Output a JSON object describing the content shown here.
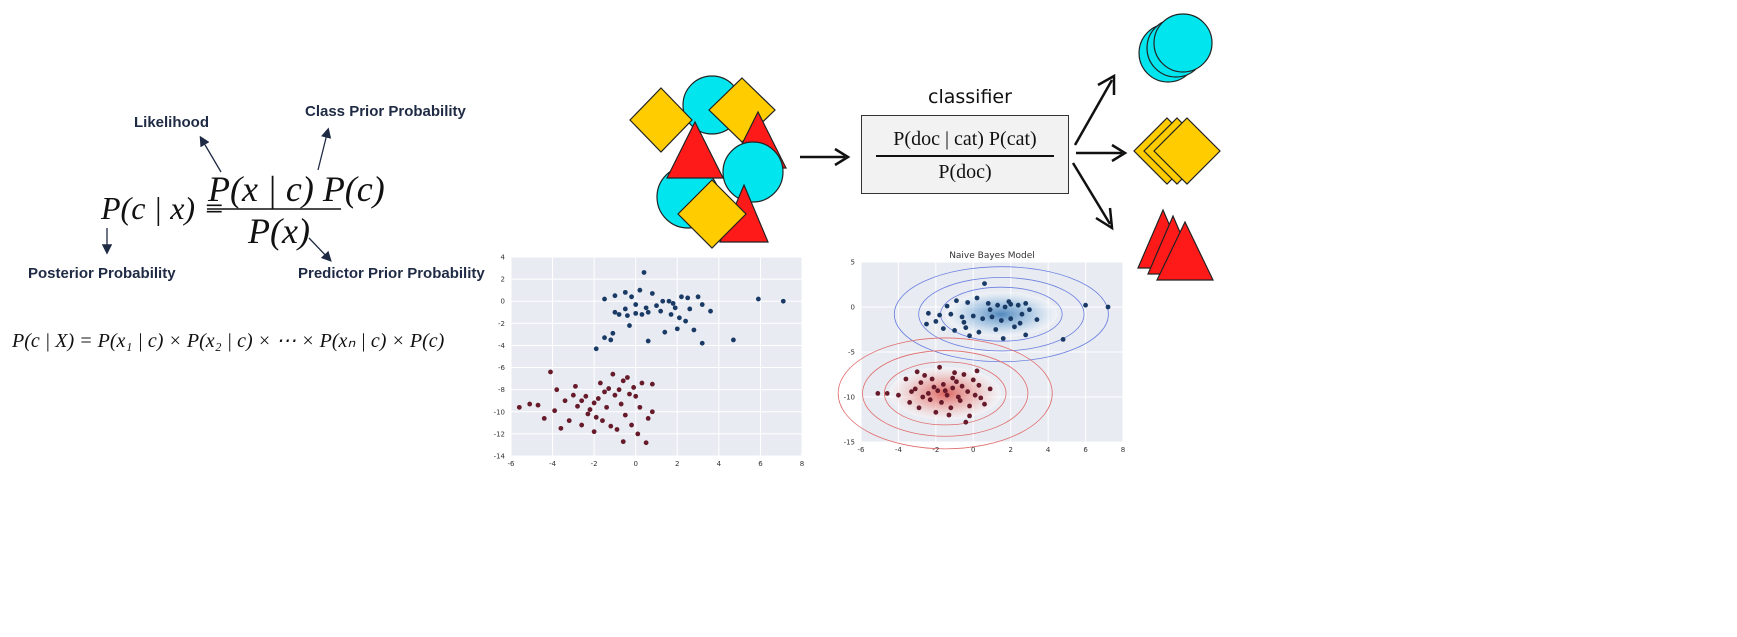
{
  "bayes": {
    "likelihood_label": "Likelihood",
    "class_prior_label": "Class Prior Probability",
    "posterior_label": "Posterior Probability",
    "predictor_prior_label": "Predictor Prior Probability",
    "lhs": "P(c | x) =",
    "numerator": "P(x | c) P(c)",
    "denominator": "P(x)",
    "expanded": "P(c | X) = P(x₁ | c) × P(x₂ | c) × ⋯ × P(xₙ | c) × P(c)"
  },
  "classifier": {
    "title": "classifier",
    "numerator": "P(doc | cat) P(cat)",
    "denominator": "P(doc)"
  },
  "colors": {
    "circle": "#00e5ee",
    "diamond": "#ffcc00",
    "triangle": "#ff1a1a",
    "blue_points": "#1a3a66",
    "red_points": "#661a2a",
    "plot_bg": "#e8ebf2"
  },
  "chart_data": [
    {
      "type": "scatter",
      "title": "",
      "xlim": [
        -6,
        8
      ],
      "ylim": [
        -14,
        4
      ],
      "x_ticks": [
        -6,
        -4,
        -2,
        0,
        2,
        4,
        6,
        8
      ],
      "y_ticks": [
        4,
        2,
        0,
        -2,
        -4,
        -6,
        -8,
        -10,
        -12,
        -14
      ],
      "grid": true,
      "series": [
        {
          "points": [
            [
              0.4,
              2.6
            ],
            [
              -1.5,
              0.2
            ],
            [
              -1.0,
              0.5
            ],
            [
              -0.5,
              0.8
            ],
            [
              0.2,
              1.0
            ],
            [
              0.8,
              0.7
            ],
            [
              1.3,
              0.0
            ],
            [
              1.6,
              0.0
            ],
            [
              1.8,
              -0.2
            ],
            [
              2.2,
              0.4
            ],
            [
              2.5,
              0.3
            ],
            [
              3.0,
              0.4
            ],
            [
              3.2,
              -0.3
            ],
            [
              3.6,
              -0.9
            ],
            [
              0.0,
              -0.3
            ],
            [
              0.5,
              -0.6
            ],
            [
              1.0,
              -0.4
            ],
            [
              -0.5,
              -0.7
            ],
            [
              -1.0,
              -1.0
            ],
            [
              -0.8,
              -1.2
            ],
            [
              -0.4,
              -1.3
            ],
            [
              0.3,
              -1.2
            ],
            [
              0.6,
              -1.0
            ],
            [
              1.2,
              -0.9
            ],
            [
              1.7,
              -1.2
            ],
            [
              2.1,
              -1.5
            ],
            [
              2.4,
              -1.8
            ],
            [
              2.6,
              -0.7
            ],
            [
              2.0,
              -2.5
            ],
            [
              -1.1,
              -2.9
            ],
            [
              -1.5,
              -3.3
            ],
            [
              -1.2,
              -3.5
            ],
            [
              0.6,
              -3.6
            ],
            [
              1.4,
              -2.8
            ],
            [
              3.2,
              -3.8
            ],
            [
              4.7,
              -3.5
            ],
            [
              5.9,
              0.2
            ],
            [
              7.1,
              0.0
            ],
            [
              -1.9,
              -4.3
            ],
            [
              -0.3,
              -2.2
            ],
            [
              0.0,
              -1.1
            ],
            [
              1.9,
              -0.6
            ],
            [
              2.8,
              -2.6
            ],
            [
              -0.2,
              0.4
            ]
          ]
        },
        {
          "points": [
            [
              -4.1,
              -6.4
            ],
            [
              -5.1,
              -9.3
            ],
            [
              -4.7,
              -9.4
            ],
            [
              -3.8,
              -8.0
            ],
            [
              -3.4,
              -9.0
            ],
            [
              -3.0,
              -8.5
            ],
            [
              -2.8,
              -9.5
            ],
            [
              -2.6,
              -9.0
            ],
            [
              -2.2,
              -9.8
            ],
            [
              -2.0,
              -9.2
            ],
            [
              -1.8,
              -8.8
            ],
            [
              -1.5,
              -8.2
            ],
            [
              -1.3,
              -7.9
            ],
            [
              -1.0,
              -8.5
            ],
            [
              -0.8,
              -8.0
            ],
            [
              -0.6,
              -7.2
            ],
            [
              -0.4,
              -6.9
            ],
            [
              -0.3,
              -8.4
            ],
            [
              0.0,
              -8.6
            ],
            [
              0.3,
              -7.4
            ],
            [
              0.8,
              -7.5
            ],
            [
              -2.3,
              -10.2
            ],
            [
              -1.9,
              -10.5
            ],
            [
              -1.6,
              -10.8
            ],
            [
              -1.2,
              -11.3
            ],
            [
              -0.9,
              -11.6
            ],
            [
              -0.5,
              -10.3
            ],
            [
              -0.2,
              -11.2
            ],
            [
              0.1,
              -12.0
            ],
            [
              0.5,
              -12.8
            ],
            [
              -2.6,
              -11.2
            ],
            [
              -3.2,
              -10.8
            ],
            [
              -3.6,
              -11.5
            ],
            [
              -2.0,
              -11.8
            ],
            [
              0.8,
              -10.0
            ],
            [
              0.2,
              -9.6
            ],
            [
              -0.7,
              -9.3
            ],
            [
              -1.4,
              -9.6
            ],
            [
              -2.4,
              -8.6
            ],
            [
              -4.4,
              -10.6
            ],
            [
              -3.9,
              -9.9
            ],
            [
              -1.1,
              -6.6
            ],
            [
              -0.1,
              -7.8
            ],
            [
              -2.9,
              -7.7
            ],
            [
              -5.6,
              -9.6
            ],
            [
              -0.6,
              -12.7
            ],
            [
              0.6,
              -10.6
            ],
            [
              -1.7,
              -7.4
            ]
          ]
        }
      ]
    },
    {
      "type": "scatter",
      "title": "Naive Bayes Model",
      "xlim": [
        -6,
        8
      ],
      "ylim": [
        -15,
        5
      ],
      "x_ticks": [
        -6,
        -4,
        -2,
        0,
        2,
        4,
        6,
        8
      ],
      "y_ticks": [
        5,
        0,
        -5,
        -10,
        -15
      ],
      "grid": true,
      "series": [
        {
          "points": [
            [
              0.6,
              2.6
            ],
            [
              -0.9,
              0.7
            ],
            [
              -0.3,
              0.5
            ],
            [
              0.2,
              1.0
            ],
            [
              0.8,
              0.4
            ],
            [
              1.3,
              0.2
            ],
            [
              1.7,
              0.0
            ],
            [
              2.0,
              0.3
            ],
            [
              2.4,
              0.2
            ],
            [
              2.8,
              0.4
            ],
            [
              3.0,
              -0.3
            ],
            [
              -2.4,
              -0.7
            ],
            [
              -1.8,
              -0.9
            ],
            [
              -1.2,
              -0.8
            ],
            [
              -0.6,
              -1.1
            ],
            [
              0.0,
              -1.0
            ],
            [
              0.5,
              -1.3
            ],
            [
              1.0,
              -1.1
            ],
            [
              1.5,
              -1.5
            ],
            [
              2.0,
              -1.3
            ],
            [
              2.5,
              -1.8
            ],
            [
              3.4,
              -1.4
            ],
            [
              -1.6,
              -2.4
            ],
            [
              -1.0,
              -2.6
            ],
            [
              -0.4,
              -2.3
            ],
            [
              0.3,
              -2.8
            ],
            [
              1.2,
              -2.5
            ],
            [
              2.2,
              -2.2
            ],
            [
              -2.0,
              -1.6
            ],
            [
              -0.2,
              -3.2
            ],
            [
              1.6,
              -3.5
            ],
            [
              2.8,
              -3.1
            ],
            [
              4.8,
              -3.6
            ],
            [
              6.0,
              0.2
            ],
            [
              7.2,
              0.0
            ],
            [
              -1.4,
              0.1
            ],
            [
              0.9,
              -0.3
            ],
            [
              2.6,
              -0.8
            ],
            [
              -2.5,
              -1.9
            ],
            [
              1.9,
              0.6
            ],
            [
              -0.5,
              -1.7
            ]
          ]
        },
        {
          "points": [
            [
              -3.6,
              -8.0
            ],
            [
              -3.1,
              -9.1
            ],
            [
              -2.8,
              -8.4
            ],
            [
              -2.4,
              -9.6
            ],
            [
              -2.1,
              -8.9
            ],
            [
              -1.9,
              -9.3
            ],
            [
              -1.6,
              -8.6
            ],
            [
              -1.4,
              -9.8
            ],
            [
              -1.1,
              -9.0
            ],
            [
              -0.9,
              -8.3
            ],
            [
              -0.6,
              -8.8
            ],
            [
              -0.3,
              -9.4
            ],
            [
              0.0,
              -8.1
            ],
            [
              0.3,
              -8.7
            ],
            [
              -1.8,
              -6.7
            ],
            [
              -1.0,
              -7.3
            ],
            [
              -0.5,
              -7.5
            ],
            [
              0.2,
              -7.1
            ],
            [
              -2.6,
              -7.6
            ],
            [
              -2.3,
              -10.3
            ],
            [
              -1.7,
              -10.6
            ],
            [
              -1.2,
              -11.2
            ],
            [
              -0.7,
              -10.4
            ],
            [
              -0.2,
              -11.0
            ],
            [
              0.4,
              -10.1
            ],
            [
              -2.9,
              -11.2
            ],
            [
              -3.4,
              -10.6
            ],
            [
              -4.0,
              -9.8
            ],
            [
              -4.6,
              -9.6
            ],
            [
              -5.1,
              -9.6
            ],
            [
              -1.3,
              -12.0
            ],
            [
              -0.4,
              -12.8
            ],
            [
              0.6,
              -10.8
            ],
            [
              0.9,
              -9.1
            ],
            [
              -2.0,
              -11.7
            ],
            [
              -3.0,
              -7.2
            ],
            [
              -0.8,
              -10.0
            ],
            [
              -1.5,
              -9.3
            ],
            [
              0.1,
              -9.8
            ],
            [
              -2.2,
              -8.0
            ],
            [
              -1.1,
              -7.9
            ],
            [
              -0.2,
              -12.1
            ],
            [
              -3.3,
              -9.4
            ],
            [
              -2.7,
              -10.0
            ]
          ]
        }
      ]
    }
  ]
}
